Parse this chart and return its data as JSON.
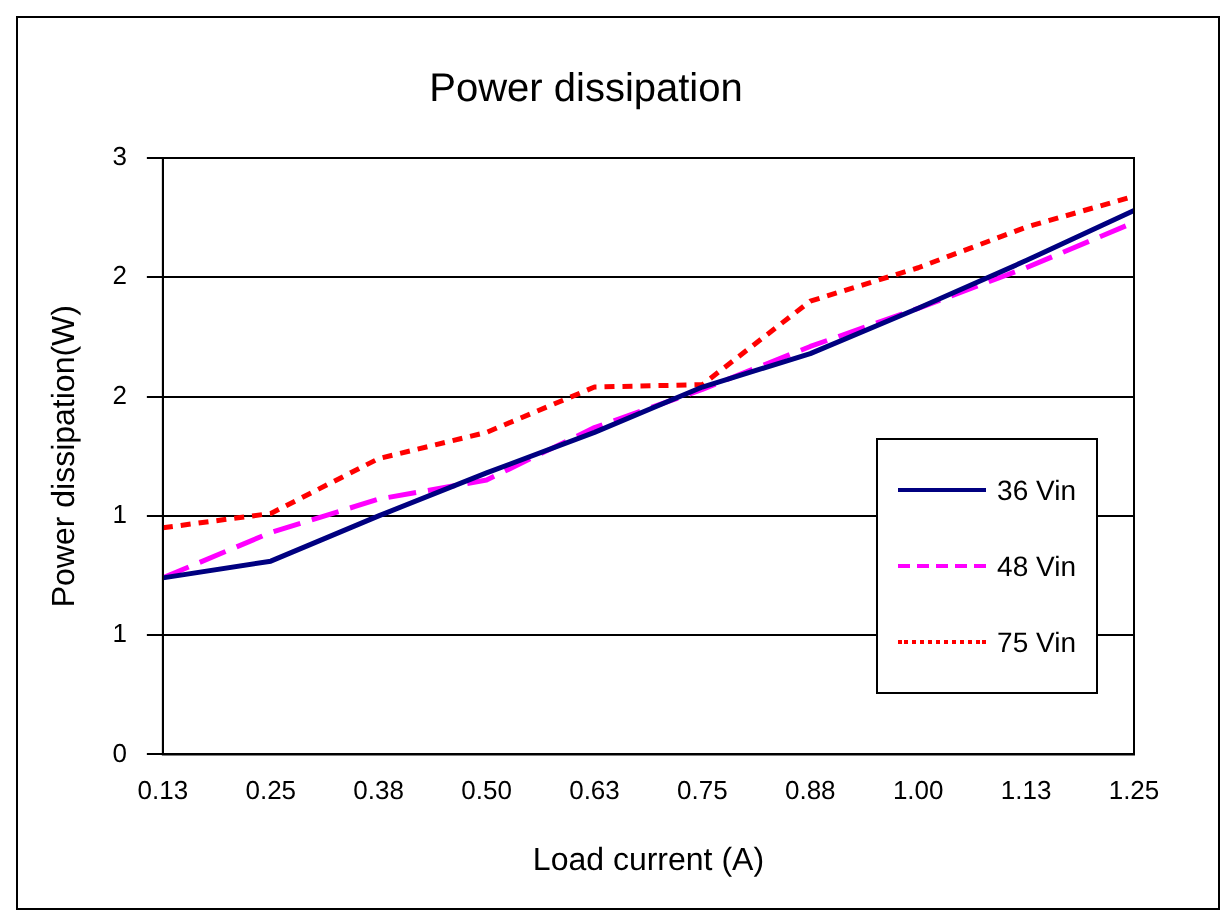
{
  "chart_data": {
    "type": "line",
    "title": "Power dissipation",
    "xlabel": "Load current (A)",
    "ylabel": "Power dissipation(W)",
    "categories": [
      "0.13",
      "0.25",
      "0.38",
      "0.50",
      "0.63",
      "0.75",
      "0.88",
      "1.00",
      "1.13",
      "1.25"
    ],
    "series": [
      {
        "name": "36 Vin",
        "color": "#000080",
        "line_style": "solid",
        "values": [
          0.74,
          0.81,
          1.0,
          1.18,
          1.35,
          1.54,
          1.68,
          1.87,
          2.07,
          2.28
        ]
      },
      {
        "name": "48 Vin",
        "color": "#ff00ff",
        "line_style": "dashed",
        "values": [
          0.74,
          0.93,
          1.07,
          1.15,
          1.37,
          1.53,
          1.71,
          1.87,
          2.04,
          2.23
        ]
      },
      {
        "name": "75 Vin",
        "color": "#ff0000",
        "line_style": "dotted",
        "values": [
          0.95,
          1.01,
          1.24,
          1.35,
          1.54,
          1.55,
          1.9,
          2.04,
          2.21,
          2.34
        ]
      }
    ],
    "ylim": [
      0,
      2.5
    ],
    "yticks": [
      0,
      {
        "value": 0.5,
        "label": "1"
      },
      {
        "value": 1,
        "label": "1"
      },
      {
        "value": 1.5,
        "label": "2"
      },
      {
        "value": 2,
        "label": "2"
      },
      {
        "value": 2.5,
        "label": "3"
      }
    ],
    "grid": "y",
    "legend": "right",
    "marker": "none"
  }
}
